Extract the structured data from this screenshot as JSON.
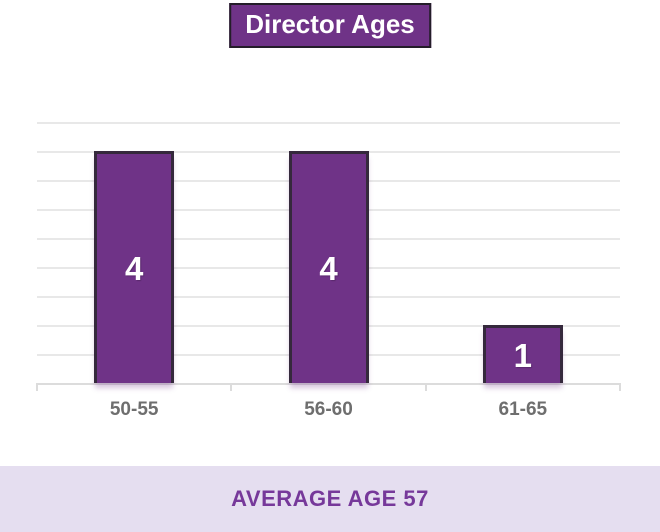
{
  "title": {
    "label": "Director Ages"
  },
  "footer": {
    "label": "AVERAGE AGE 57"
  },
  "chart_data": {
    "type": "bar",
    "title": "Director Ages",
    "categories": [
      "50-55",
      "56-60",
      "61-65"
    ],
    "values": [
      4,
      4,
      1
    ],
    "data_labels": [
      "4",
      "4",
      "1"
    ],
    "xlabel": "",
    "ylabel": "",
    "ylim": [
      0,
      4.5
    ],
    "gridline_step": 0.5,
    "grid": "on",
    "legend": "none",
    "annotation": "AVERAGE AGE 57",
    "colors": {
      "bar_fill": "#6F3387",
      "bar_border": "#35293C",
      "data_label": "#FFFFFF",
      "gridline": "#E8E8E8",
      "axis_line": "#DCDCDC",
      "category_label": "#6E6E6E",
      "title_bg": "#6F3387",
      "title_text": "#FFFFFF",
      "title_border": "#241D29",
      "footer_bg": "#E5DEF0",
      "footer_text": "#76389A"
    }
  }
}
